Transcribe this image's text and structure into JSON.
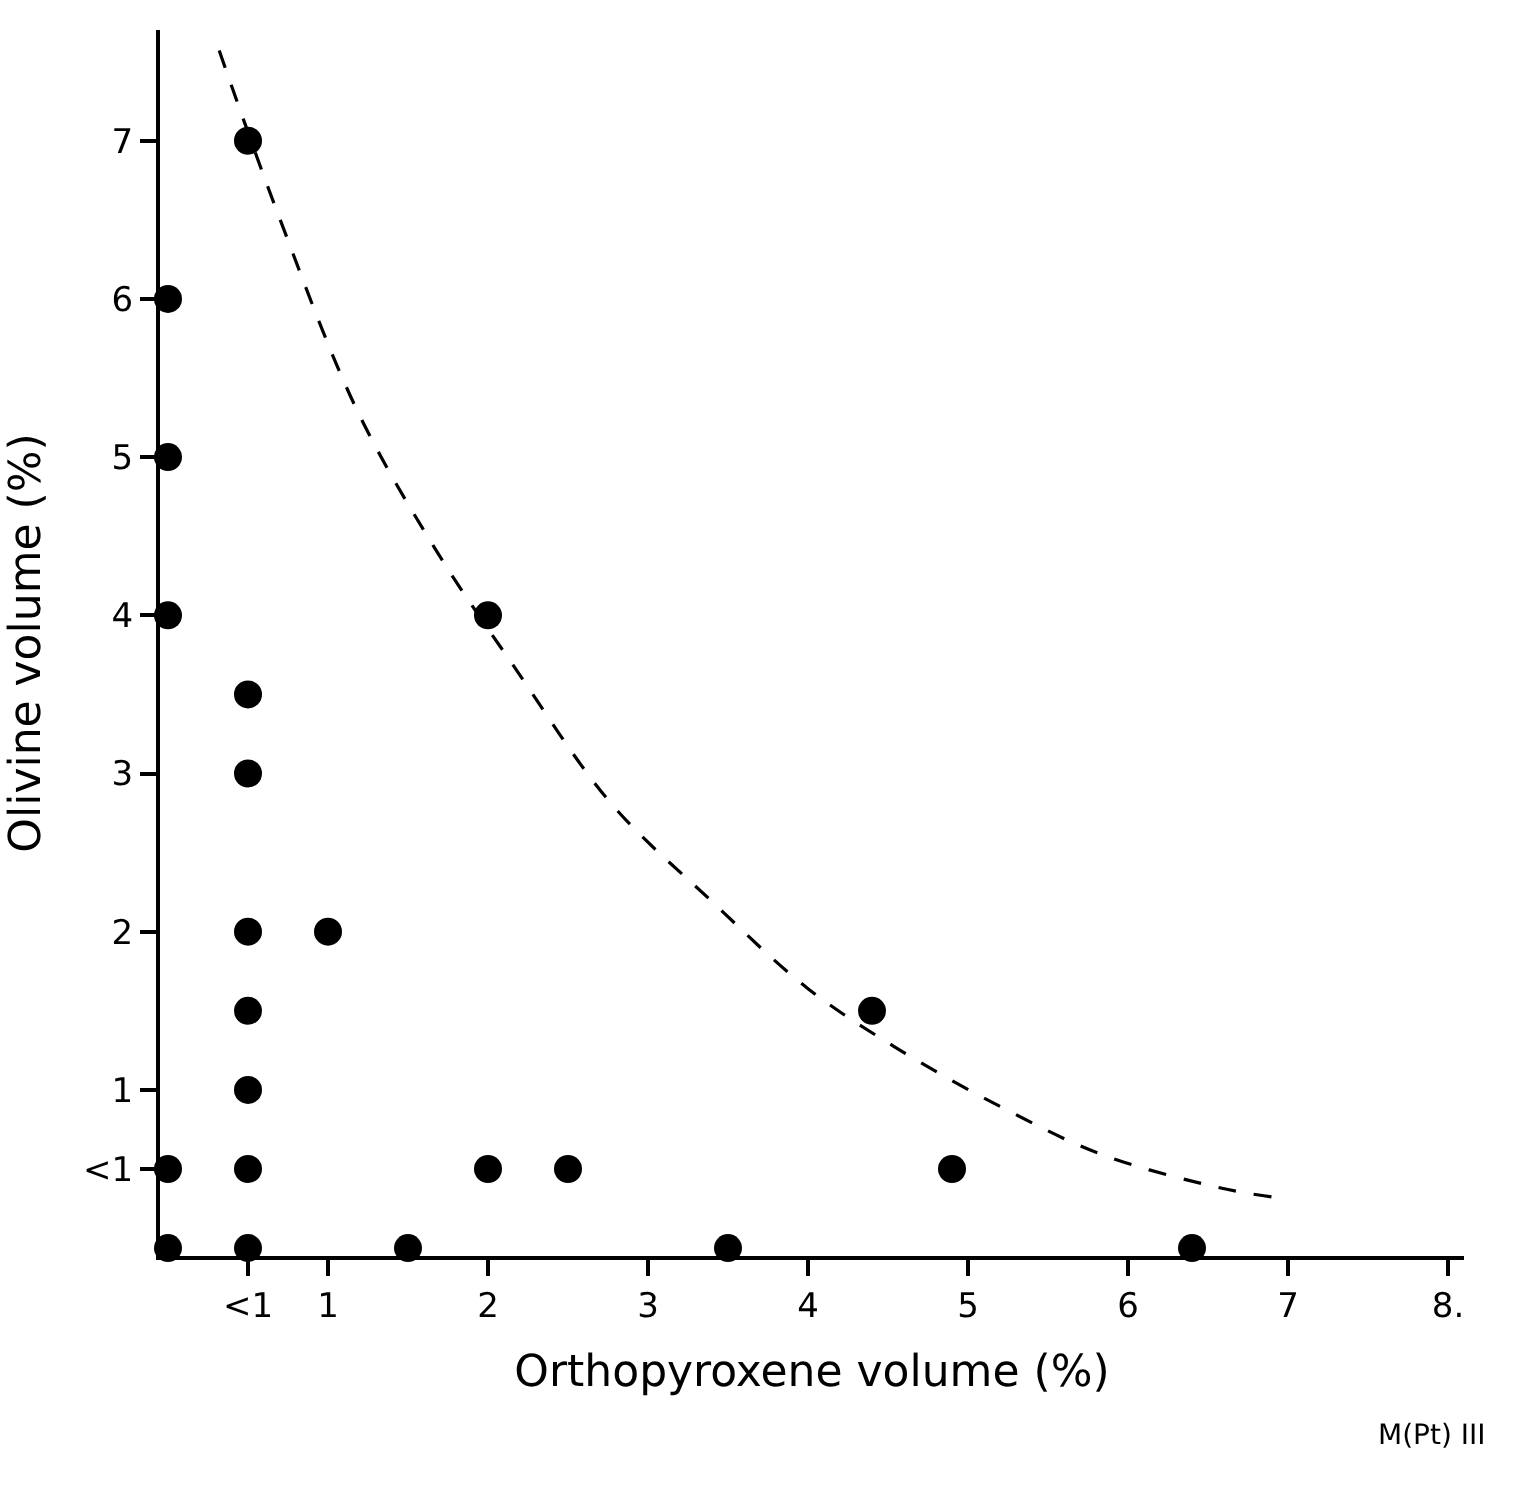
{
  "chart_data": {
    "type": "scatter",
    "xlabel": "Orthopyroxene volume (%)",
    "ylabel": "Olivine volume (%)",
    "annotations": [
      "M(Pt) III"
    ],
    "series": [
      {
        "color": "#000000",
        "marker": "circle",
        "x": [
          0,
          0,
          0,
          0,
          0,
          0.5,
          0.5,
          0.5,
          0.5,
          0.5,
          0.5,
          0.5,
          0.5,
          1,
          1.5,
          2,
          2,
          2.5,
          3.5,
          4.4,
          4.9,
          6.4
        ],
        "values": [
          0,
          0.5,
          4,
          5,
          6,
          7,
          3.5,
          3,
          2,
          1.5,
          1,
          0.5,
          0,
          2,
          0,
          4,
          0.5,
          0.5,
          0,
          1.5,
          0.5,
          0
        ]
      },
      {
        "type": "line",
        "color": "#000000",
        "line_style": "dashed",
        "marker": "none",
        "x": [
          0.32,
          0.69,
          1.18,
          1.67,
          2.16,
          2.77,
          3.39,
          4.0,
          4.61,
          5.23,
          5.84,
          6.58,
          6.92
        ],
        "values": [
          7.57,
          6.53,
          5.3,
          4.42,
          3.68,
          2.81,
          2.2,
          1.64,
          1.23,
          0.88,
          0.59,
          0.38,
          0.32
        ]
      }
    ],
    "xlim": [
      -0.05,
      8.1
    ],
    "ylim": [
      -0.05,
      7.7
    ],
    "xticks": [
      {
        "value": 0.5,
        "label": "<1"
      },
      1,
      2,
      3,
      4,
      5,
      6,
      7,
      {
        "value": 8,
        "label": "8."
      }
    ],
    "yticks": [
      {
        "value": 0.5,
        "label": "<1"
      },
      1,
      2,
      3,
      4,
      5,
      6,
      7
    ]
  }
}
